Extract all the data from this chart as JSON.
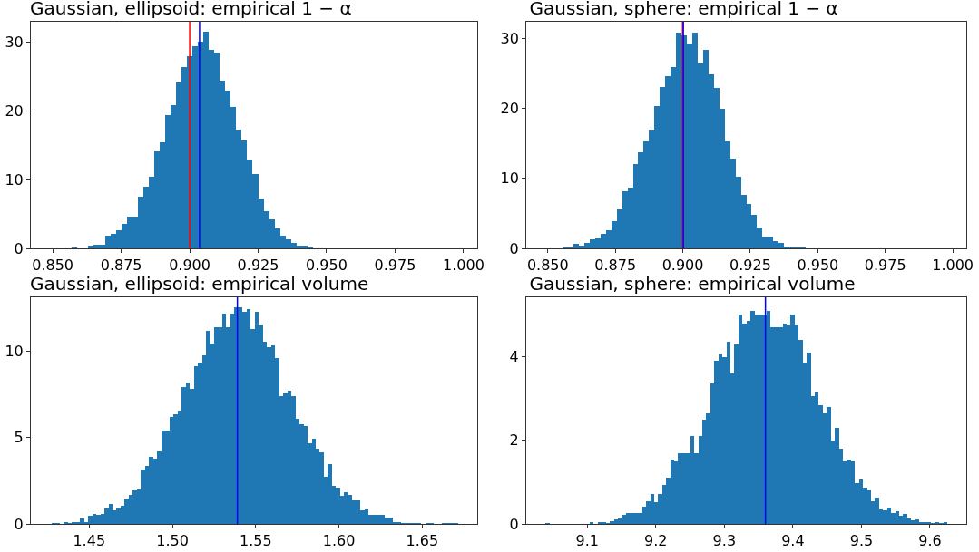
{
  "chart_data": [
    {
      "type": "histogram",
      "title": "Gaussian, ellipsoid: empirical 1 − α",
      "color": "#1f77b4",
      "bins": [
        0.857,
        0.859,
        0.861,
        0.863,
        0.865,
        0.867,
        0.869,
        0.871,
        0.873,
        0.875,
        0.877,
        0.879,
        0.881,
        0.883,
        0.885,
        0.887,
        0.889,
        0.891,
        0.893,
        0.895,
        0.897,
        0.899,
        0.901,
        0.903,
        0.905,
        0.907,
        0.909,
        0.911,
        0.913,
        0.915,
        0.917,
        0.919,
        0.921,
        0.923,
        0.925,
        0.927,
        0.929,
        0.931,
        0.933,
        0.935,
        0.937,
        0.939,
        0.941,
        0.943,
        0.945
      ],
      "values": [
        0.1,
        0,
        0,
        0.4,
        0.5,
        0.5,
        1.9,
        2.1,
        2.6,
        3.6,
        4.6,
        4.6,
        7.5,
        9.0,
        10.4,
        14.1,
        15.5,
        19.4,
        20.9,
        24.1,
        26.4,
        28.0,
        29.5,
        30.1,
        31.5,
        28.9,
        28.5,
        24.4,
        23.0,
        20.6,
        17.3,
        15.7,
        13.0,
        10.8,
        7.3,
        5.4,
        4.2,
        2.9,
        1.9,
        1.3,
        0.8,
        0.4,
        0.4,
        0.1
      ],
      "xlim": [
        0.842,
        1.005
      ],
      "xticks": [
        {
          "value": 0.85,
          "label": "0.850"
        },
        {
          "value": 0.875,
          "label": "0.875"
        },
        {
          "value": 0.9,
          "label": "0.900"
        },
        {
          "value": 0.925,
          "label": "0.925"
        },
        {
          "value": 0.95,
          "label": "0.950"
        },
        {
          "value": 0.975,
          "label": "0.975"
        },
        {
          "value": 1.0,
          "label": "1.000"
        }
      ],
      "ylim": [
        0,
        33
      ],
      "yticks": [
        0,
        10,
        20,
        30
      ],
      "ref_lines": [
        {
          "axis": "x",
          "value": 0.9,
          "color": "#ff0000"
        },
        {
          "axis": "x",
          "value": 0.9036,
          "color": "#0000ff"
        }
      ]
    },
    {
      "type": "histogram",
      "title": "Gaussian, sphere: empirical 1 − α",
      "color": "#1f77b4",
      "bins": [
        0.8555,
        0.8575,
        0.8595,
        0.8615,
        0.8635,
        0.8655,
        0.8675,
        0.8695,
        0.8715,
        0.8735,
        0.8755,
        0.8775,
        0.8795,
        0.8815,
        0.8835,
        0.8855,
        0.8875,
        0.8895,
        0.8915,
        0.8935,
        0.8955,
        0.8975,
        0.8995,
        0.9015,
        0.9035,
        0.9055,
        0.9075,
        0.9095,
        0.9115,
        0.9135,
        0.9155,
        0.9175,
        0.9195,
        0.9215,
        0.9235,
        0.9255,
        0.9275,
        0.9295,
        0.9315,
        0.9335,
        0.9355,
        0.9375,
        0.9395,
        0.9415,
        0.9435,
        0.9455
      ],
      "values": [
        0.1,
        0.1,
        0.6,
        0.4,
        0.8,
        1.3,
        1.4,
        2.1,
        2.6,
        3.9,
        5.6,
        8.2,
        8.7,
        12.0,
        13.7,
        15.3,
        17.0,
        20.4,
        23.1,
        24.6,
        25.9,
        30.9,
        30.5,
        29.3,
        30.9,
        26.5,
        28.4,
        24.9,
        22.9,
        20.0,
        15.3,
        12.8,
        10.3,
        7.7,
        6.4,
        4.8,
        3.0,
        1.7,
        1.7,
        1.0,
        0.8,
        0.3,
        0.1,
        0.1,
        0.1
      ],
      "xlim": [
        0.842,
        1.005
      ],
      "xticks": [
        {
          "value": 0.85,
          "label": "0.850"
        },
        {
          "value": 0.875,
          "label": "0.875"
        },
        {
          "value": 0.9,
          "label": "0.900"
        },
        {
          "value": 0.925,
          "label": "0.925"
        },
        {
          "value": 0.95,
          "label": "0.950"
        },
        {
          "value": 0.975,
          "label": "0.975"
        },
        {
          "value": 1.0,
          "label": "1.000"
        }
      ],
      "ylim": [
        0,
        32.4
      ],
      "yticks": [
        0,
        10,
        20,
        30
      ],
      "ref_lines": [
        {
          "axis": "x",
          "value": 0.8999,
          "color": "#ff0000"
        },
        {
          "axis": "x",
          "value": 0.9002,
          "color": "#0000ff"
        }
      ]
    },
    {
      "type": "histogram",
      "title": "Gaussian, ellipsoid: empirical volume",
      "color": "#1f77b4",
      "bins": [
        1.4274,
        1.4298,
        1.4323,
        1.4347,
        1.4372,
        1.4396,
        1.442,
        1.4445,
        1.4469,
        1.4494,
        1.4518,
        1.4542,
        1.4567,
        1.4591,
        1.4616,
        1.464,
        1.4664,
        1.4689,
        1.4713,
        1.4738,
        1.4762,
        1.4786,
        1.4811,
        1.4835,
        1.486,
        1.4884,
        1.4908,
        1.4933,
        1.4957,
        1.4982,
        1.5006,
        1.503,
        1.5055,
        1.5079,
        1.5104,
        1.5128,
        1.5152,
        1.5177,
        1.5201,
        1.5226,
        1.525,
        1.5274,
        1.5299,
        1.5323,
        1.5348,
        1.5372,
        1.5396,
        1.5421,
        1.5445,
        1.547,
        1.5494,
        1.5518,
        1.5543,
        1.5567,
        1.5592,
        1.5616,
        1.564,
        1.5665,
        1.5689,
        1.5714,
        1.5738,
        1.5762,
        1.5787,
        1.5811,
        1.5836,
        1.586,
        1.5884,
        1.5909,
        1.5933,
        1.5958,
        1.5982,
        1.6006,
        1.6031,
        1.6055,
        1.608,
        1.6104,
        1.6128,
        1.6153,
        1.6177,
        1.6202,
        1.6226,
        1.625,
        1.6275,
        1.6299,
        1.6324,
        1.6348,
        1.6372,
        1.6397,
        1.6421,
        1.6446,
        1.647,
        1.6494,
        1.6519,
        1.6543,
        1.6568,
        1.6592,
        1.6616,
        1.6641,
        1.6665,
        1.669,
        1.6714
      ],
      "values": [
        0.05,
        0.05,
        0,
        0.1,
        0.05,
        0.1,
        0.1,
        0.3,
        0.1,
        0.45,
        0.6,
        0.55,
        0.6,
        0.9,
        1.15,
        0.8,
        0.9,
        1.05,
        1.45,
        1.7,
        1.95,
        2.0,
        3.15,
        3.35,
        3.9,
        3.75,
        4.2,
        5.4,
        5.4,
        6.2,
        6.35,
        6.55,
        7.9,
        8.2,
        7.8,
        9.1,
        9.35,
        9.75,
        11.15,
        10.45,
        11.35,
        11.35,
        12.15,
        11.35,
        12.15,
        12.5,
        12.5,
        12.25,
        12.4,
        11.25,
        12.25,
        11.5,
        10.55,
        10.2,
        10.3,
        9.6,
        7.4,
        7.55,
        7.7,
        7.4,
        6.1,
        5.75,
        5.65,
        4.65,
        4.9,
        4.35,
        4.15,
        2.75,
        3.45,
        2.2,
        2.1,
        1.65,
        1.85,
        1.7,
        1.35,
        1.35,
        0.8,
        0.85,
        0.5,
        0.55,
        0.55,
        0.5,
        0.35,
        0.35,
        0.1,
        0.1,
        0.05,
        0.05,
        0.05,
        0.05,
        0.05,
        0,
        0.05,
        0.05,
        0,
        0,
        0.05,
        0.05,
        0.05,
        0.05
      ],
      "xlim": [
        1.415,
        1.683
      ],
      "xticks": [
        {
          "value": 1.45,
          "label": "1.45"
        },
        {
          "value": 1.5,
          "label": "1.50"
        },
        {
          "value": 1.55,
          "label": "1.55"
        },
        {
          "value": 1.6,
          "label": "1.60"
        },
        {
          "value": 1.65,
          "label": "1.65"
        }
      ],
      "ylim": [
        0,
        13.1
      ],
      "yticks": [
        0,
        5,
        10
      ],
      "ref_lines": [
        {
          "axis": "x",
          "value": 1.539,
          "color": "#0000ff"
        }
      ]
    },
    {
      "type": "histogram",
      "title": "Gaussian, sphere: empirical volume",
      "color": "#1f77b4",
      "bins": [
        9.0393,
        9.0452,
        9.051,
        9.0569,
        9.0627,
        9.0686,
        9.0745,
        9.0803,
        9.0862,
        9.092,
        9.0979,
        9.1038,
        9.1096,
        9.1155,
        9.1213,
        9.1272,
        9.1331,
        9.1389,
        9.1448,
        9.1506,
        9.1565,
        9.1624,
        9.1682,
        9.1741,
        9.1799,
        9.1858,
        9.1917,
        9.1975,
        9.2034,
        9.2092,
        9.2151,
        9.221,
        9.2268,
        9.2327,
        9.2385,
        9.2444,
        9.2503,
        9.2561,
        9.262,
        9.2678,
        9.2737,
        9.2796,
        9.2854,
        9.2913,
        9.2971,
        9.303,
        9.3089,
        9.3147,
        9.3206,
        9.3264,
        9.3323,
        9.3382,
        9.344,
        9.3499,
        9.3557,
        9.3616,
        9.3675,
        9.3733,
        9.3792,
        9.385,
        9.3909,
        9.3968,
        9.4026,
        9.4085,
        9.4143,
        9.4202,
        9.4261,
        9.4319,
        9.4378,
        9.4436,
        9.4495,
        9.4554,
        9.4612,
        9.4671,
        9.4729,
        9.4788,
        9.4847,
        9.4905,
        9.4964,
        9.5022,
        9.5081,
        9.514,
        9.5198,
        9.5257,
        9.5315,
        9.5374,
        9.5433,
        9.5491,
        9.555,
        9.5608,
        9.5667,
        9.5726,
        9.5784,
        9.5843,
        9.5901,
        9.596,
        9.6019,
        9.6077,
        9.6136,
        9.6194,
        9.6253
      ],
      "values": [
        0.02,
        0,
        0,
        0,
        0,
        0,
        0,
        0,
        0,
        0,
        0,
        0.05,
        0,
        0.05,
        0.05,
        0.02,
        0.07,
        0.1,
        0.12,
        0.22,
        0.25,
        0.25,
        0.25,
        0.26,
        0.42,
        0.55,
        0.72,
        0.53,
        0.72,
        0.93,
        1.1,
        1.55,
        1.5,
        1.7,
        1.7,
        1.7,
        2.1,
        1.7,
        2.1,
        2.5,
        2.65,
        3.35,
        3.9,
        4.05,
        4.0,
        4.35,
        3.6,
        4.3,
        5.0,
        4.8,
        4.85,
        5.1,
        5.0,
        5.0,
        5.0,
        5.1,
        4.7,
        4.7,
        4.7,
        4.8,
        4.75,
        5.0,
        4.75,
        4.4,
        3.85,
        4.1,
        3.05,
        3.15,
        2.85,
        2.65,
        2.8,
        2.0,
        2.3,
        1.8,
        1.5,
        1.55,
        1.5,
        0.97,
        1.07,
        0.87,
        0.8,
        0.55,
        0.62,
        0.35,
        0.32,
        0.38,
        0.27,
        0.3,
        0.2,
        0.23,
        0.12,
        0.08,
        0.1,
        0.05,
        0.05,
        0.05,
        0.02,
        0.05,
        0.03,
        0.05
      ],
      "xlim": [
        9.011,
        9.653
      ],
      "xticks": [
        9.1,
        9.2,
        9.3,
        9.4,
        9.5,
        9.6
      ],
      "ylim": [
        0,
        5.42
      ],
      "yticks": [
        0,
        2,
        4
      ],
      "ref_lines": [
        {
          "axis": "x",
          "value": 9.36,
          "color": "#0000ff"
        }
      ]
    }
  ]
}
